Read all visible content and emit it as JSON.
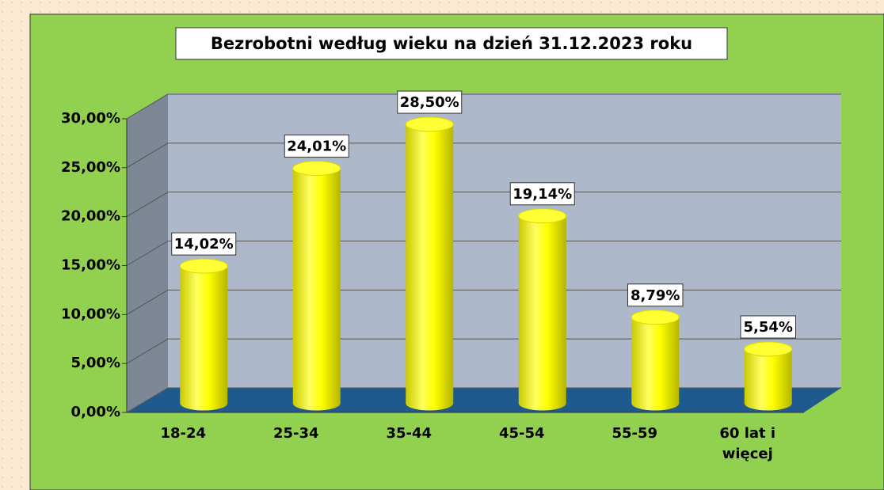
{
  "chart_data": {
    "type": "bar3d",
    "title": "Bezrobotni według wieku na dzień 31.12.2023 roku",
    "categories": [
      "18-24",
      "25-34",
      "35-44",
      "45-54",
      "55-59",
      "60 lat i więcej"
    ],
    "values": [
      14.02,
      24.01,
      28.5,
      19.14,
      8.79,
      5.54
    ],
    "value_labels": [
      "14,02%",
      "24,01%",
      "28,50%",
      "19,14%",
      "8,79%",
      "5,54%"
    ],
    "color": "#ffff00",
    "ylim": [
      0,
      30
    ],
    "yticks": [
      {
        "value": 0,
        "label": "0,00%"
      },
      {
        "value": 5,
        "label": "5,00%"
      },
      {
        "value": 10,
        "label": "10,00%"
      },
      {
        "value": 15,
        "label": "15,00%"
      },
      {
        "value": 20,
        "label": "20,00%"
      },
      {
        "value": 25,
        "label": "25,00%"
      },
      {
        "value": 30,
        "label": "30,00%"
      }
    ],
    "grid": true
  }
}
